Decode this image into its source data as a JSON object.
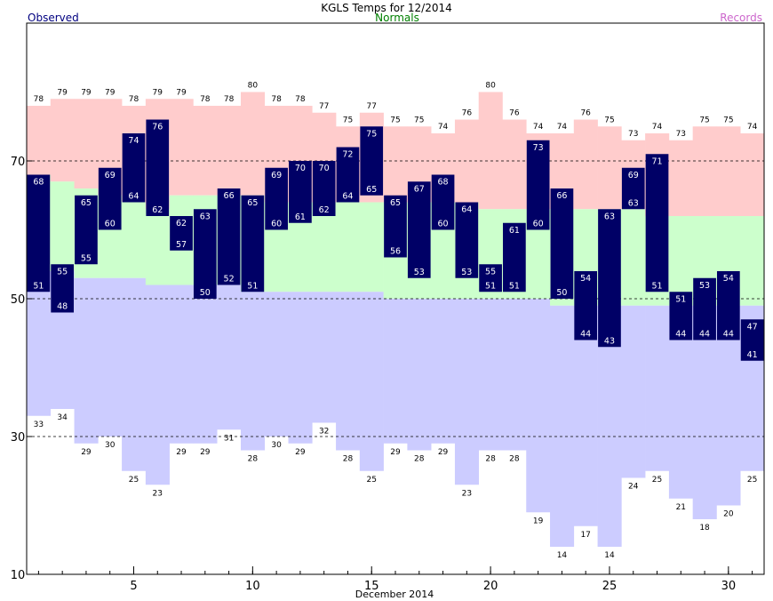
{
  "chart_data": {
    "type": "bar",
    "title": "KGLS Temps for 12/2014",
    "xlabel": "December 2014",
    "ylabel": "",
    "legend": {
      "observed": "Observed",
      "normals": "Normals",
      "records": "Records"
    },
    "ylim": [
      10,
      90
    ],
    "y_ticks": [
      10,
      30,
      50,
      70
    ],
    "x_ticks": [
      5,
      10,
      15,
      20,
      25,
      30
    ],
    "x_tick_labels": [
      "5",
      "10",
      "15",
      "20",
      "25",
      "30"
    ],
    "y_tick_labels": [
      "10",
      "30",
      "50",
      "70"
    ],
    "days": [
      1,
      2,
      3,
      4,
      5,
      6,
      7,
      8,
      9,
      10,
      11,
      12,
      13,
      14,
      15,
      16,
      17,
      18,
      19,
      20,
      21,
      22,
      23,
      24,
      25,
      26,
      27,
      28,
      29,
      30,
      31
    ],
    "series": [
      {
        "name": "Records",
        "kind": "record_high",
        "values": [
          78,
          79,
          79,
          79,
          78,
          79,
          79,
          78,
          78,
          80,
          78,
          78,
          77,
          75,
          77,
          75,
          75,
          74,
          76,
          80,
          76,
          74,
          74,
          76,
          75,
          73,
          74,
          73,
          75,
          75,
          74
        ]
      },
      {
        "name": "Records",
        "kind": "record_low",
        "values": [
          33,
          34,
          29,
          30,
          25,
          23,
          29,
          29,
          31,
          28,
          30,
          29,
          32,
          28,
          25,
          29,
          28,
          29,
          23,
          28,
          28,
          19,
          14,
          17,
          14,
          24,
          25,
          21,
          18,
          20,
          25
        ]
      },
      {
        "name": "Normals",
        "kind": "normal_high",
        "values": [
          68,
          67,
          66,
          65,
          64,
          63,
          65,
          65,
          65,
          65,
          64,
          64,
          64,
          64,
          64,
          64,
          64,
          64,
          64,
          63,
          63,
          63,
          63,
          63,
          63,
          63,
          62,
          62,
          62,
          62,
          62
        ]
      },
      {
        "name": "Normals",
        "kind": "normal_low",
        "values": [
          54,
          54,
          53,
          53,
          53,
          52,
          52,
          52,
          52,
          51,
          51,
          51,
          51,
          51,
          51,
          50,
          50,
          50,
          50,
          50,
          50,
          50,
          49,
          49,
          49,
          49,
          49,
          49,
          49,
          49,
          49
        ]
      },
      {
        "name": "Observed",
        "kind": "observed_high",
        "values": [
          68,
          55,
          65,
          69,
          74,
          76,
          62,
          63,
          66,
          65,
          69,
          70,
          70,
          72,
          75,
          65,
          67,
          68,
          64,
          55,
          61,
          73,
          66,
          54,
          63,
          69,
          71,
          51,
          53,
          54,
          47
        ]
      },
      {
        "name": "Observed",
        "kind": "observed_low",
        "values": [
          51,
          48,
          55,
          60,
          64,
          62,
          57,
          50,
          52,
          51,
          60,
          61,
          62,
          64,
          65,
          56,
          53,
          60,
          53,
          51,
          51,
          60,
          50,
          44,
          43,
          63,
          51,
          44,
          44,
          44,
          41
        ]
      }
    ],
    "grid": "dashed lines at 30, 50, 70",
    "legend_placement": "top",
    "colors": {
      "observed": "#000066",
      "observed_label": "#ffffff",
      "normals_band": "#ccffcc",
      "record_high_band": "#ffcccc",
      "record_low_band": "#ccccff",
      "legend_observed": "#000080",
      "legend_normals": "#008000",
      "legend_records": "#cc66cc"
    }
  }
}
